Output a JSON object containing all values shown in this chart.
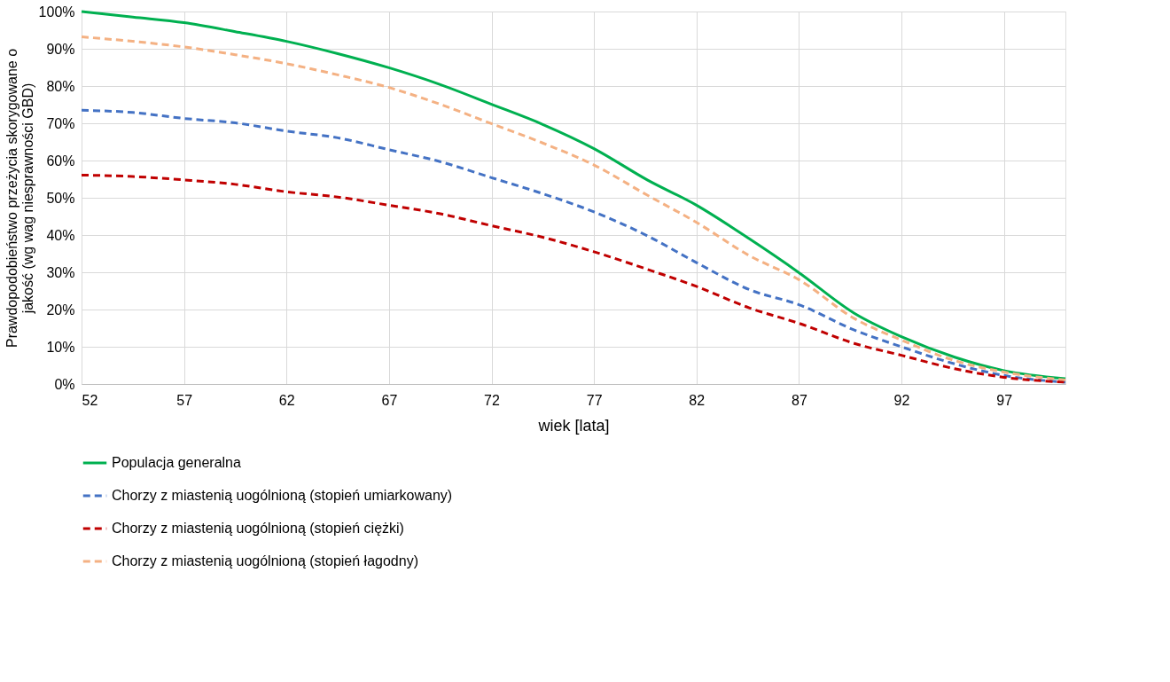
{
  "chart_data": {
    "type": "line",
    "xlabel": "wiek [lata]",
    "ylabel": "Prawdopodobieństwo przeżycia skorygowane o jakość (wg wag niesprawności GBD)",
    "x": [
      52,
      54.5,
      57,
      59.5,
      62,
      64.5,
      67,
      69.5,
      72,
      74.5,
      77,
      79.6,
      82,
      84.6,
      87,
      89.7,
      92,
      94.6,
      97,
      100
    ],
    "xlim": [
      52,
      100
    ],
    "xticks": [
      52,
      57,
      62,
      67,
      72,
      77,
      82,
      87,
      92,
      97
    ],
    "ylim": [
      0,
      100
    ],
    "yticks": [
      {
        "value": 0,
        "label": "0%"
      },
      {
        "value": 10,
        "label": "10%"
      },
      {
        "value": 20,
        "label": "20%"
      },
      {
        "value": 30,
        "label": "30%"
      },
      {
        "value": 40,
        "label": "40%"
      },
      {
        "value": 50,
        "label": "50%"
      },
      {
        "value": 60,
        "label": "60%"
      },
      {
        "value": 70,
        "label": "70%"
      },
      {
        "value": 80,
        "label": "80%"
      },
      {
        "value": 90,
        "label": "90%"
      },
      {
        "value": 100,
        "label": "100%"
      }
    ],
    "grid": true,
    "legend": "bottom",
    "marker": "none",
    "series": [
      {
        "name": "Populacja generalna",
        "color": "#00b050",
        "line_style": "solid",
        "values": [
          100,
          98.5,
          97,
          94.6,
          92,
          88.7,
          84.9,
          80.4,
          75.1,
          69.7,
          63.2,
          54.8,
          48,
          38.9,
          29.9,
          19,
          12.7,
          7.2,
          3.6,
          1.4
        ]
      },
      {
        "name": "Chorzy z miastenią uogólnioną (stopień umiarkowany)",
        "color": "#4472c4",
        "line_style": "dashed",
        "values": [
          73.5,
          72.9,
          71.3,
          70.1,
          67.9,
          66.1,
          62.9,
          59.7,
          55.4,
          51.1,
          46.2,
          39.8,
          32.6,
          25.3,
          21.3,
          14.5,
          10,
          5.4,
          2.3,
          0.5
        ]
      },
      {
        "name": "Chorzy z miastenią uogólnioną (stopień ciężki)",
        "color": "#c00000",
        "line_style": "dashed",
        "values": [
          56.1,
          55.7,
          54.8,
          53.6,
          51.6,
          50.2,
          48,
          45.7,
          42.5,
          39.4,
          35.5,
          30.8,
          26.2,
          20.4,
          16.3,
          10.9,
          7.7,
          4.1,
          1.8,
          0.5
        ]
      },
      {
        "name": "Chorzy z miastenią uogólnioną (stopień łagodny)",
        "color": "#f4b183",
        "line_style": "dashed",
        "values": [
          93.2,
          92,
          90.5,
          88.4,
          86,
          83,
          79.6,
          75.1,
          69.9,
          64.7,
          58.8,
          50.7,
          43.4,
          34.4,
          28,
          17.6,
          11.8,
          6.3,
          3.2,
          1.1
        ]
      }
    ]
  }
}
